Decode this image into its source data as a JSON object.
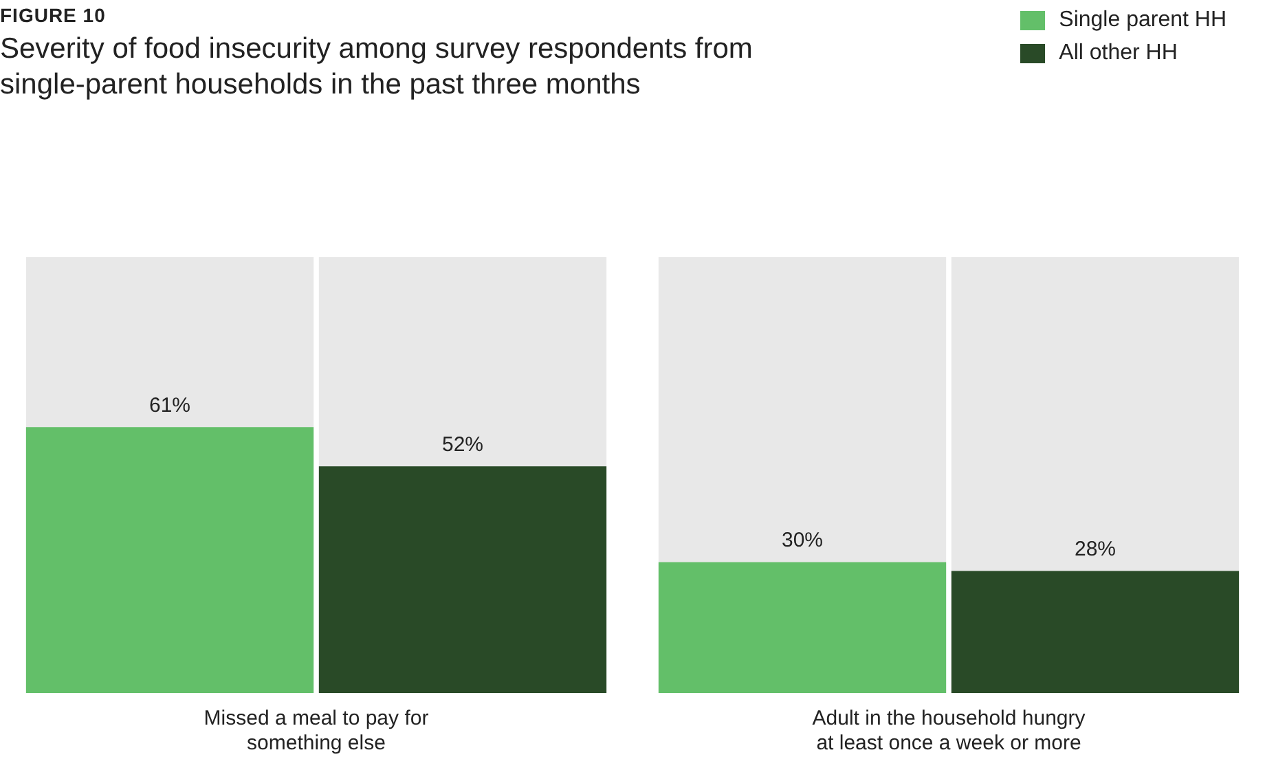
{
  "chart_data": {
    "type": "bar",
    "subtitle": "FIGURE 10",
    "title": "Severity of food insecurity among survey respondents from single-parent households in the past three months",
    "categories": [
      "Missed a meal to pay for something else",
      "Adult in the household hungry at least once a week or more"
    ],
    "series": [
      {
        "name": "Single parent HH",
        "color": "#63bf69",
        "values": [
          61,
          30
        ],
        "value_labels": [
          "61%",
          "30%"
        ]
      },
      {
        "name": "All other HH",
        "color": "#294a27",
        "values": [
          52,
          28
        ],
        "value_labels": [
          "52%",
          "28%"
        ]
      }
    ],
    "ylim": [
      0,
      100
    ],
    "tick_labels": "x",
    "grid": false,
    "legend": "top right"
  }
}
